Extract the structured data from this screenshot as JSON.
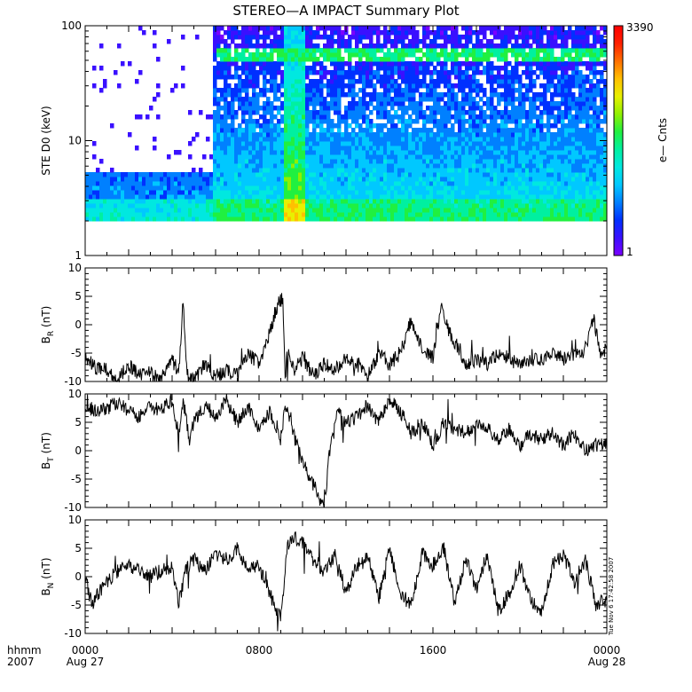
{
  "title": "STEREO—A IMPACT Summary Plot",
  "timestamp": "Tue Nov  6 17:42:58 2007",
  "x_axis": {
    "label_top": "hhmm",
    "label_bottom": "2007",
    "ticks": [
      {
        "value": 0,
        "line1": "0000",
        "line2": "Aug 27"
      },
      {
        "value": 8,
        "line1": "0800",
        "line2": ""
      },
      {
        "value": 16,
        "line1": "1600",
        "line2": ""
      },
      {
        "value": 24,
        "line1": "0000",
        "line2": "Aug 28"
      }
    ]
  },
  "colorbar": {
    "min_label": "1",
    "max_label": "3390",
    "label": "e— Cnts",
    "colors": [
      "#7b00ff",
      "#3a10ff",
      "#0030ff",
      "#0080ff",
      "#00c8ff",
      "#00e8e0",
      "#00f0a0",
      "#20f040",
      "#90f000",
      "#e8f000",
      "#ffc000",
      "#ff7000",
      "#ff2000",
      "#ff0000"
    ]
  },
  "chart_data": [
    {
      "type": "heatmap",
      "title": "STEREO—A IMPACT Summary Plot",
      "ylabel": "STE D0 (keV)",
      "yscale": "log",
      "ylim": [
        1,
        100
      ],
      "y_ticks": [
        "1",
        "10",
        "100"
      ],
      "xlim": [
        0,
        24
      ],
      "z_label": "e— Cnts",
      "z_range": [
        1,
        3390
      ],
      "energy_range_keV": [
        2,
        100
      ],
      "features": [
        {
          "x_start": 0,
          "x_end": 5.9,
          "level": "low",
          "max_energy_keV": 5.5
        },
        {
          "x_start": 5.9,
          "x_end": 9.2,
          "level": "elevated",
          "max_energy_keV": 100
        },
        {
          "x_start": 9.2,
          "x_end": 10.1,
          "level": "high",
          "max_energy_keV": 100
        },
        {
          "x_start": 10.1,
          "x_end": 24,
          "level": "elevated",
          "max_energy_keV": 100
        },
        {
          "type": "band",
          "energy_keV": 55,
          "x_start": 6,
          "x_end": 24,
          "level": "high"
        }
      ]
    },
    {
      "type": "line",
      "ylabel": "B",
      "ylabel_sub": "R",
      "ylabel_unit": " (nT)",
      "xlim": [
        0,
        24
      ],
      "ylim": [
        -10,
        10
      ],
      "y_ticks": [
        -10,
        -5,
        0,
        5,
        10
      ],
      "x": [
        0,
        0.5,
        1,
        1.5,
        2,
        2.5,
        3,
        3.5,
        4,
        4.3,
        4.5,
        4.7,
        5,
        5.5,
        6,
        6.5,
        7,
        7.5,
        8,
        8.5,
        8.8,
        9.1,
        9.2,
        9.3,
        9.6,
        10,
        10.5,
        11,
        11.5,
        12,
        12.5,
        13,
        13.5,
        14,
        14.5,
        15,
        15.5,
        16,
        16.4,
        16.7,
        17,
        17.5,
        18,
        18.5,
        19,
        19.5,
        20,
        20.5,
        21,
        21.5,
        22,
        22.5,
        23,
        23.4,
        23.7,
        24
      ],
      "values": [
        -6,
        -7.5,
        -8,
        -9.5,
        -7,
        -9,
        -8.5,
        -9.5,
        -6,
        -9,
        4,
        -9,
        -10,
        -7,
        -9,
        -8,
        -9,
        -5,
        -7,
        -1,
        3,
        5,
        -10,
        -5,
        -8,
        -6,
        -9,
        -7,
        -8,
        -6,
        -7,
        -9,
        -5,
        -7,
        -5,
        1,
        -4,
        -6,
        3.5,
        -1,
        -3,
        -7,
        -6,
        -7,
        -5,
        -6,
        -7,
        -6,
        -6,
        -5,
        -6,
        -5,
        -5,
        1,
        -5,
        -4
      ]
    },
    {
      "type": "line",
      "ylabel": "B",
      "ylabel_sub": "T",
      "ylabel_unit": " (nT)",
      "xlim": [
        0,
        24
      ],
      "ylim": [
        -10,
        10
      ],
      "y_ticks": [
        -10,
        -5,
        0,
        5,
        10
      ],
      "x": [
        0,
        0.5,
        1,
        1.5,
        2,
        2.5,
        3,
        3.5,
        4,
        4.3,
        4.5,
        4.8,
        5,
        5.5,
        6,
        6.5,
        7,
        7.5,
        8,
        8.5,
        9,
        9.2,
        9.5,
        10,
        10.5,
        11,
        11.3,
        11.6,
        12,
        12.5,
        13,
        13.5,
        14,
        14.5,
        15,
        15.5,
        16,
        16.5,
        17,
        17.5,
        18,
        18.5,
        19,
        19.5,
        20,
        20.5,
        21,
        21.5,
        22,
        22.5,
        23,
        23.5,
        24
      ],
      "values": [
        8,
        7,
        7.5,
        8.5,
        7,
        6,
        8,
        7,
        9,
        3,
        9,
        2,
        5,
        8,
        6,
        9,
        5,
        8,
        4,
        7,
        2,
        8,
        4,
        -2,
        -6,
        -10,
        2,
        7,
        5,
        6,
        8,
        5,
        9,
        7,
        3,
        5,
        1,
        5,
        4,
        3,
        5,
        4,
        2,
        4,
        1,
        3,
        2,
        3,
        1,
        3,
        0,
        1,
        1
      ]
    },
    {
      "type": "line",
      "ylabel": "B",
      "ylabel_sub": "N",
      "ylabel_unit": " (nT)",
      "xlim": [
        0,
        24
      ],
      "ylim": [
        -10,
        10
      ],
      "y_ticks": [
        -10,
        -5,
        0,
        5,
        10
      ],
      "x": [
        0,
        0.3,
        0.6,
        1,
        1.5,
        2,
        2.5,
        3,
        3.5,
        4,
        4.3,
        4.6,
        5,
        5.5,
        6,
        6.5,
        7,
        7.5,
        8,
        8.5,
        8.8,
        9,
        9.3,
        9.6,
        10,
        10.5,
        11,
        11.5,
        12,
        12.5,
        13,
        13.5,
        14,
        14.5,
        15,
        15.5,
        16,
        16.5,
        17,
        17.5,
        18,
        18.5,
        19,
        19.5,
        20,
        20.5,
        21,
        21.5,
        22,
        22.5,
        23,
        23.5,
        24
      ],
      "values": [
        0,
        -5,
        -3,
        -1,
        1,
        2,
        1,
        0,
        1,
        2,
        -5,
        1,
        3,
        1,
        4,
        3,
        5,
        1,
        2,
        -3,
        -6,
        -7,
        5,
        7,
        6,
        3,
        1,
        4,
        -3,
        2,
        4,
        -4,
        5,
        -3,
        -5,
        4,
        2,
        5,
        -5,
        3,
        -2,
        4,
        -6,
        -3,
        2,
        -4,
        -6,
        2,
        4,
        -1,
        3,
        -5,
        -4
      ]
    }
  ]
}
